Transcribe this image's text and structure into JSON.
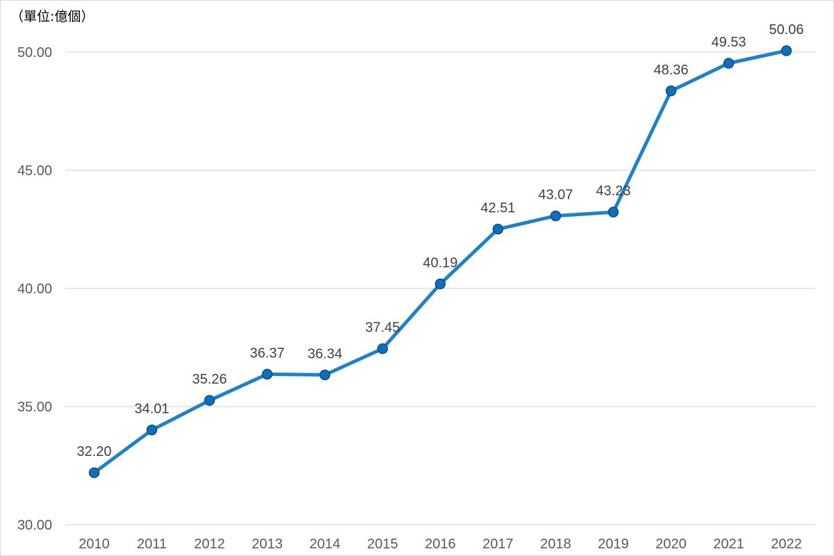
{
  "chart_data": {
    "type": "line",
    "unit_label": "（單位:億個）",
    "categories": [
      "2010",
      "2011",
      "2012",
      "2013",
      "2014",
      "2015",
      "2016",
      "2017",
      "2018",
      "2019",
      "2020",
      "2021",
      "2022"
    ],
    "series": [
      {
        "values": [
          32.2,
          34.01,
          35.26,
          36.37,
          36.34,
          37.45,
          40.19,
          42.51,
          43.07,
          43.23,
          48.36,
          49.53,
          50.06
        ],
        "data_labels": [
          "32.20",
          "34.01",
          "35.26",
          "36.37",
          "36.34",
          "37.45",
          "40.19",
          "42.51",
          "43.07",
          "43.23",
          "48.36",
          "49.53",
          "50.06"
        ],
        "color": "#1f82c8",
        "marker_color": "#0f6fb8",
        "marker_stroke": "#0a4f86"
      }
    ],
    "y_ticks": [
      30,
      35,
      40,
      45,
      50
    ],
    "y_tick_labels": [
      "30.00",
      "35.00",
      "40.00",
      "45.00",
      "50.00"
    ],
    "ylim": [
      30,
      50
    ],
    "grid": true,
    "legend": "none"
  }
}
